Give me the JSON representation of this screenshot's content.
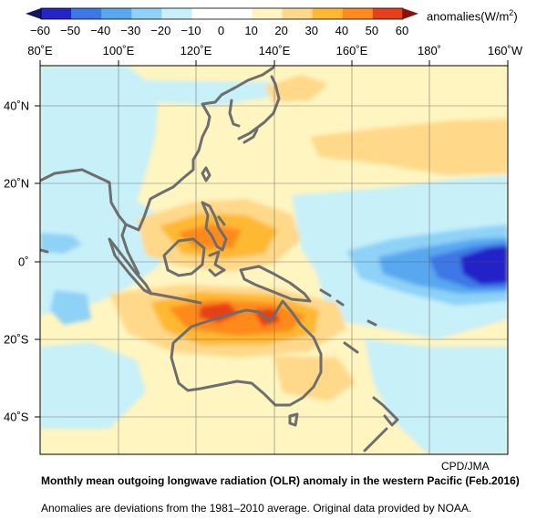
{
  "legend": {
    "units_prefix": "anomalies(W/m",
    "units_power": "2",
    "units_suffix": ")",
    "ticks": [
      "−60",
      "−50",
      "−40",
      "−30",
      "−20",
      "−10",
      "0",
      "10",
      "20",
      "30",
      "40",
      "50",
      "60"
    ],
    "colors": [
      "#2424c8",
      "#3c78e6",
      "#58a8f0",
      "#8ed2f8",
      "#c8f0f8",
      "#ffffff",
      "#ffffff",
      "#fff5c0",
      "#ffd88a",
      "#ffb830",
      "#ff8a1e",
      "#e84018"
    ],
    "low_arrow_color": "#141466",
    "high_arrow_color": "#8a1010"
  },
  "map": {
    "lon_labels": [
      "80˚E",
      "100˚E",
      "120˚E",
      "140˚E",
      "160˚E",
      "180˚",
      "160˚W"
    ],
    "lat_labels": [
      "40˚N",
      "20˚N",
      "0˚",
      "20˚S",
      "40˚S"
    ],
    "background": "#fff5c0",
    "coast_color": "#6e6e6e"
  },
  "credit": "CPD/JMA",
  "title": "Monthly mean outgoing longwave radiation (OLR) anomaly in the western Pacific (Feb.2016)",
  "subtitle": "Anomalies are deviations from the 1981–2010 average. Original data provided by NOAA."
}
